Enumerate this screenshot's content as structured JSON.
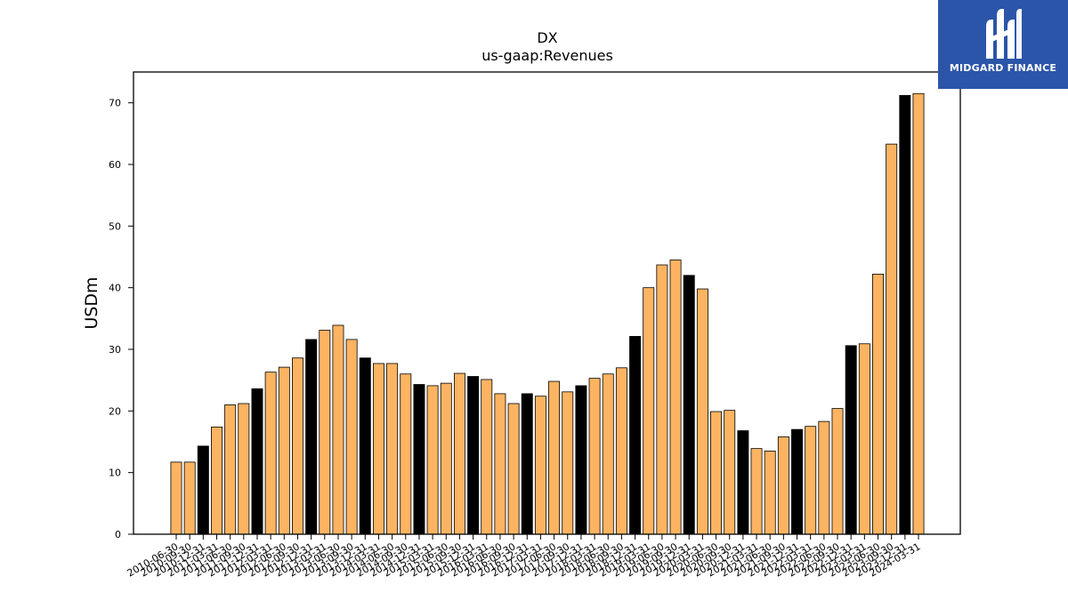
{
  "brand": {
    "name": "MIDGARD FINANCE",
    "logo_icon": "midgard-m-logo-icon",
    "bg_color": "#2b55a8"
  },
  "chart_data": {
    "type": "bar",
    "title": "DX",
    "subtitle": "us-gaap:Revenues",
    "xlabel": "",
    "ylabel": "USDm",
    "ylim": [
      0,
      75
    ],
    "yticks": [
      0,
      10,
      20,
      30,
      40,
      50,
      60,
      70
    ],
    "colors": {
      "quarter": "#fdb462",
      "year_end": "#000000",
      "edge": "#000000"
    },
    "categories": [
      "2010-06-30",
      "2010-09-30",
      "2010-12-31",
      "2011-03-31",
      "2011-06-30",
      "2011-09-30",
      "2011-12-31",
      "2012-03-31",
      "2012-06-30",
      "2012-09-30",
      "2012-12-31",
      "2013-03-31",
      "2013-06-30",
      "2013-09-30",
      "2013-12-31",
      "2014-03-31",
      "2014-06-30",
      "2014-09-30",
      "2014-12-31",
      "2015-03-31",
      "2015-06-30",
      "2015-09-30",
      "2015-12-31",
      "2016-03-31",
      "2016-06-30",
      "2016-09-30",
      "2016-12-31",
      "2017-03-31",
      "2017-06-30",
      "2017-09-30",
      "2017-12-31",
      "2018-03-31",
      "2018-06-30",
      "2018-09-30",
      "2018-12-31",
      "2019-03-31",
      "2019-06-30",
      "2019-09-30",
      "2019-12-31",
      "2020-03-31",
      "2020-06-30",
      "2020-09-30",
      "2020-12-31",
      "2021-03-31",
      "2021-06-30",
      "2021-09-30",
      "2021-12-31",
      "2022-03-31",
      "2022-06-30",
      "2022-09-30",
      "2022-12-31",
      "2023-03-31",
      "2023-06-30",
      "2023-09-30",
      "2023-12-31",
      "2024-03-31"
    ],
    "values": [
      11.7,
      11.7,
      14.3,
      17.4,
      21.0,
      21.2,
      23.6,
      26.3,
      27.1,
      28.6,
      31.6,
      33.1,
      33.9,
      31.6,
      28.6,
      27.7,
      27.7,
      26.0,
      24.3,
      24.1,
      24.5,
      26.1,
      25.6,
      25.1,
      22.8,
      21.2,
      22.8,
      22.4,
      24.8,
      23.1,
      24.1,
      25.3,
      26.0,
      27.0,
      32.1,
      40.0,
      43.7,
      44.5,
      42.0,
      39.8,
      19.9,
      20.1,
      16.8,
      13.9,
      13.5,
      15.8,
      17.0,
      17.5,
      18.3,
      20.4,
      30.6,
      30.9,
      42.2,
      63.3,
      71.2,
      71.5
    ],
    "highlight": [
      false,
      false,
      true,
      false,
      false,
      false,
      true,
      false,
      false,
      false,
      true,
      false,
      false,
      false,
      true,
      false,
      false,
      false,
      true,
      false,
      false,
      false,
      true,
      false,
      false,
      false,
      true,
      false,
      false,
      false,
      true,
      false,
      false,
      false,
      true,
      false,
      false,
      false,
      true,
      false,
      false,
      false,
      true,
      false,
      false,
      false,
      true,
      false,
      false,
      false,
      true,
      false,
      false,
      false,
      true,
      false
    ]
  }
}
